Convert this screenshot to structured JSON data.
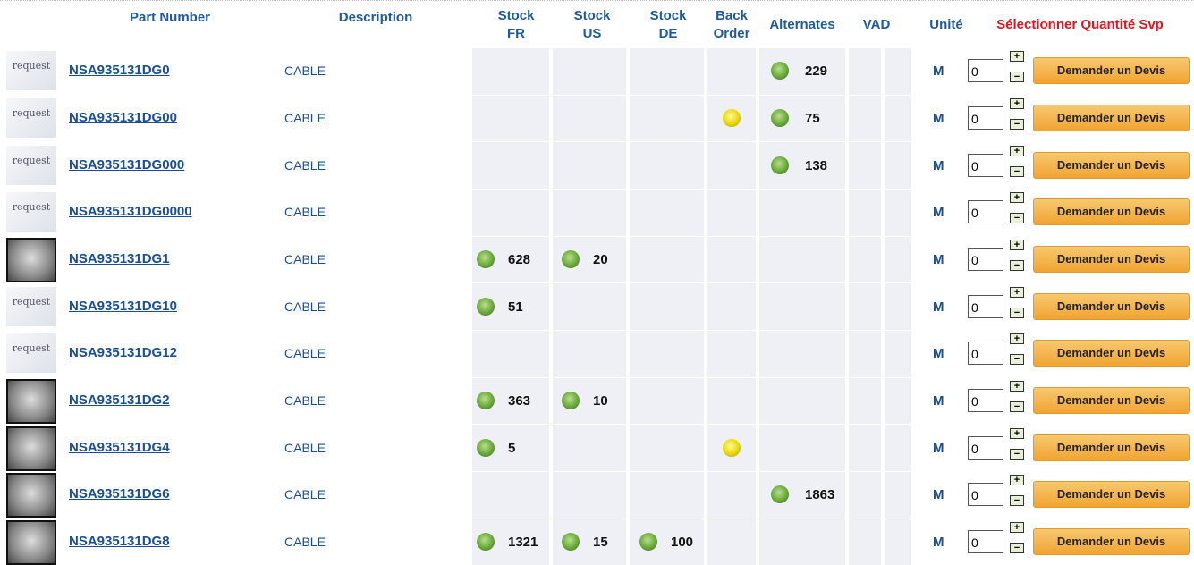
{
  "table": {
    "headers": [
      "Part Number",
      "Description",
      "Stock FR",
      "Stock US",
      "Stock DE",
      "Back Order",
      "Alternates",
      "VAD",
      "Unité",
      "Sélectionner Quantité Svp"
    ],
    "rows": [
      {
        "thumb": "request",
        "part": "NSA935131DG0",
        "description": "CABLE",
        "alternates": 229,
        "unit": "M",
        "quantity": "0",
        "button": "Demander un Devis"
      },
      {
        "thumb": "request",
        "part": "NSA935131DG00",
        "description": "CABLE",
        "back_order": true,
        "alternates": 75,
        "unit": "M",
        "quantity": "0",
        "button": "Demander un Devis"
      },
      {
        "thumb": "request",
        "part": "NSA935131DG000",
        "description": "CABLE",
        "alternates": 138,
        "unit": "M",
        "quantity": "0",
        "button": "Demander un Devis"
      },
      {
        "thumb": "request",
        "part": "NSA935131DG0000",
        "description": "CABLE",
        "unit": "M",
        "quantity": "0",
        "button": "Demander un Devis"
      },
      {
        "part": "NSA935131DG1",
        "description": "CABLE",
        "stock_fr": 628,
        "stock_us": 20,
        "unit": "M",
        "quantity": "0",
        "button": "Demander un Devis"
      },
      {
        "thumb": "request",
        "part": "NSA935131DG10",
        "description": "CABLE",
        "stock_fr": 51,
        "unit": "M",
        "quantity": "0",
        "button": "Demander un Devis"
      },
      {
        "thumb": "request",
        "part": "NSA935131DG12",
        "description": "CABLE",
        "unit": "M",
        "quantity": "0",
        "button": "Demander un Devis"
      },
      {
        "part": "NSA935131DG2",
        "description": "CABLE",
        "stock_fr": 363,
        "stock_us": 10,
        "unit": "M",
        "quantity": "0",
        "button": "Demander un Devis"
      },
      {
        "part": "NSA935131DG4",
        "description": "CABLE",
        "stock_fr": 5,
        "back_order": true,
        "unit": "M",
        "quantity": "0",
        "button": "Demander un Devis"
      },
      {
        "part": "NSA935131DG6",
        "description": "CABLE",
        "alternates": 1863,
        "unit": "M",
        "quantity": "0",
        "button": "Demander un Devis"
      },
      {
        "part": "NSA935131DG8",
        "description": "CABLE",
        "stock_fr": 1321,
        "stock_us": 15,
        "stock_de": 100,
        "unit": "M",
        "quantity": "0",
        "button": "Demander un Devis"
      }
    ]
  }
}
